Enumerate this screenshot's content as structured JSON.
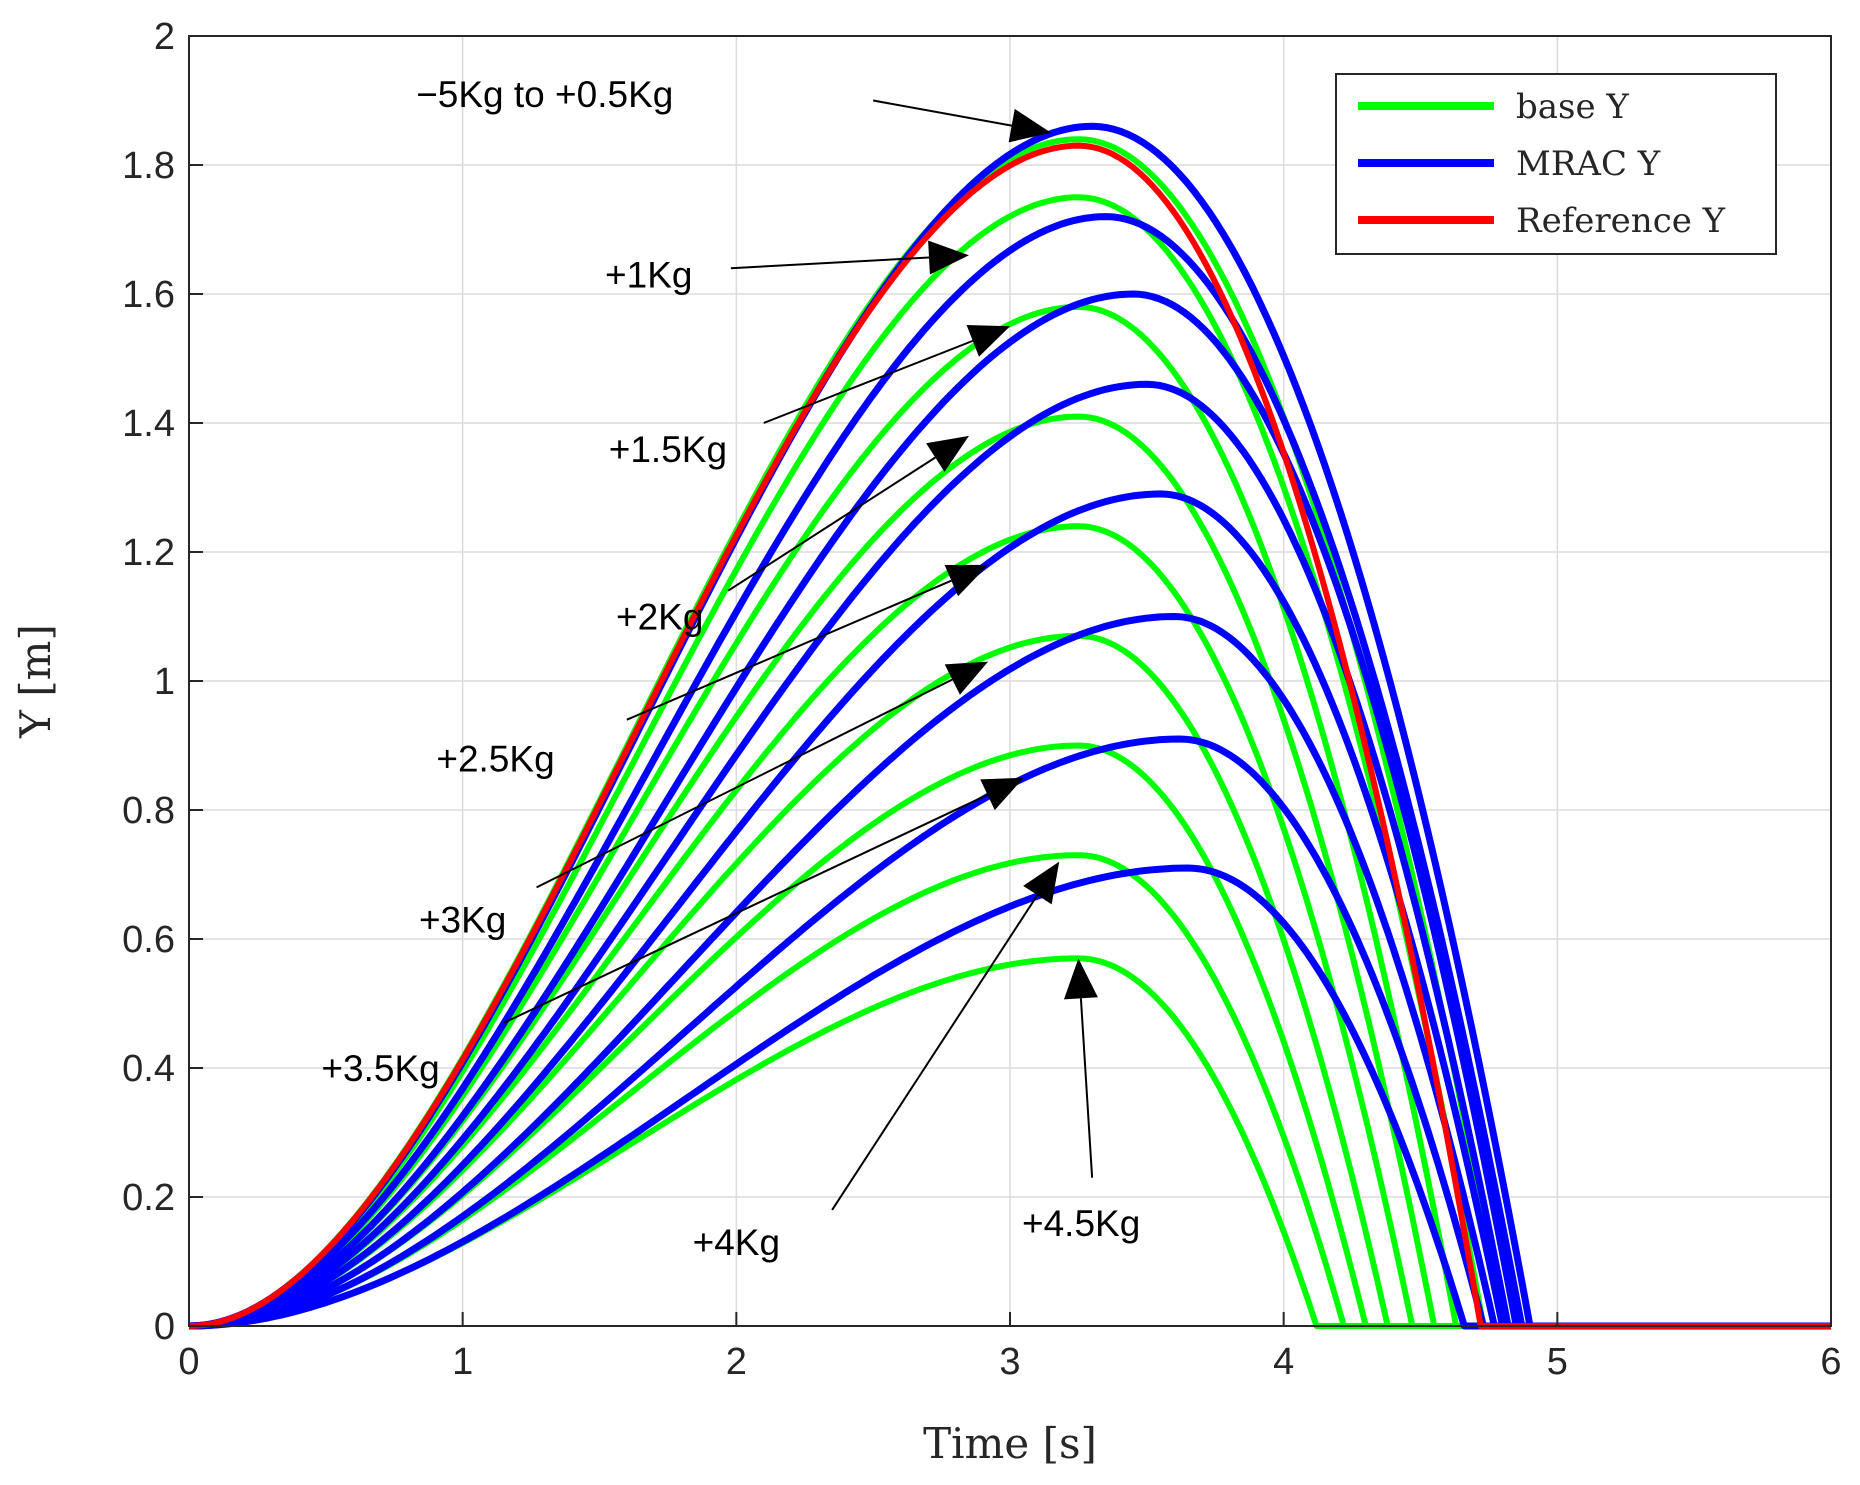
{
  "chart_data": {
    "type": "line",
    "title": "",
    "xlabel": "Time [s]",
    "ylabel": "Y [m]",
    "xlim": [
      0,
      6
    ],
    "ylim": [
      0,
      2
    ],
    "xticks": [
      "0",
      "1",
      "2",
      "3",
      "4",
      "5",
      "6"
    ],
    "yticks": [
      "0",
      "0.2",
      "0.4",
      "0.6",
      "0.8",
      "1",
      "1.2",
      "1.4",
      "1.6",
      "1.8",
      "2"
    ],
    "grid": true,
    "legend": {
      "position": "top-right",
      "entries": [
        {
          "label": "base Y",
          "color": "#00ff00"
        },
        {
          "label": "MRAC Y",
          "color": "#0000ff"
        },
        {
          "label": "Reference Y",
          "color": "#ff0000"
        }
      ]
    },
    "series": [
      {
        "name": "MRAC Y",
        "label": "-5Kg to +0.5Kg",
        "color": "#0000ff",
        "start": 0,
        "peak_t": 3.3,
        "peak_y": 1.86,
        "end_t": 4.9
      },
      {
        "name": "MRAC Y",
        "label": "+1Kg",
        "color": "#0000ff",
        "start": 0,
        "peak_t": 3.35,
        "peak_y": 1.72,
        "end_t": 4.87
      },
      {
        "name": "MRAC Y",
        "label": "+1.5Kg",
        "color": "#0000ff",
        "start": 0,
        "peak_t": 3.45,
        "peak_y": 1.6,
        "end_t": 4.85
      },
      {
        "name": "MRAC Y",
        "label": "+2Kg",
        "color": "#0000ff",
        "start": 0,
        "peak_t": 3.5,
        "peak_y": 1.46,
        "end_t": 4.82
      },
      {
        "name": "MRAC Y",
        "label": "+2.5Kg",
        "color": "#0000ff",
        "start": 0,
        "peak_t": 3.55,
        "peak_y": 1.29,
        "end_t": 4.8
      },
      {
        "name": "MRAC Y",
        "label": "+3Kg",
        "color": "#0000ff",
        "start": 0,
        "peak_t": 3.6,
        "peak_y": 1.1,
        "end_t": 4.77
      },
      {
        "name": "MRAC Y",
        "label": "+3.5Kg",
        "color": "#0000ff",
        "start": 0,
        "peak_t": 3.62,
        "peak_y": 0.91,
        "end_t": 4.73
      },
      {
        "name": "MRAC Y",
        "label": "+4Kg",
        "color": "#0000ff",
        "start": 0,
        "peak_t": 3.65,
        "peak_y": 0.71,
        "end_t": 4.66
      },
      {
        "name": "base Y",
        "label": "-5Kg to +0.5Kg",
        "color": "#00ff00",
        "start": 0,
        "peak_t": 3.25,
        "peak_y": 1.84,
        "end_t": 4.8
      },
      {
        "name": "base Y",
        "label": "+1Kg",
        "color": "#00ff00",
        "start": 0,
        "peak_t": 3.25,
        "peak_y": 1.75,
        "end_t": 4.73
      },
      {
        "name": "base Y",
        "label": "+1.5Kg",
        "color": "#00ff00",
        "start": 0,
        "peak_t": 3.25,
        "peak_y": 1.58,
        "end_t": 4.63
      },
      {
        "name": "base Y",
        "label": "+2Kg",
        "color": "#00ff00",
        "start": 0,
        "peak_t": 3.25,
        "peak_y": 1.41,
        "end_t": 4.55
      },
      {
        "name": "base Y",
        "label": "+2.5Kg",
        "color": "#00ff00",
        "start": 0,
        "peak_t": 3.25,
        "peak_y": 1.24,
        "end_t": 4.47
      },
      {
        "name": "base Y",
        "label": "+3Kg",
        "color": "#00ff00",
        "start": 0,
        "peak_t": 3.25,
        "peak_y": 1.07,
        "end_t": 4.38
      },
      {
        "name": "base Y",
        "label": "+3.5Kg",
        "color": "#00ff00",
        "start": 0,
        "peak_t": 3.25,
        "peak_y": 0.9,
        "end_t": 4.3
      },
      {
        "name": "base Y",
        "label": "+4Kg",
        "color": "#00ff00",
        "start": 0,
        "peak_t": 3.25,
        "peak_y": 0.73,
        "end_t": 4.22
      },
      {
        "name": "base Y",
        "label": "+4.5Kg",
        "color": "#00ff00",
        "start": 0,
        "peak_t": 3.25,
        "peak_y": 0.57,
        "end_t": 4.12
      },
      {
        "name": "Reference Y",
        "label": "Reference",
        "color": "#ff0000",
        "start": 0,
        "peak_t": 3.25,
        "peak_y": 1.83,
        "end_t": 4.72
      }
    ],
    "annotations": [
      {
        "text": "−5Kg to +0.5Kg",
        "text_t": 1.3,
        "text_y": 1.91,
        "tail_t": 2.5,
        "tail_y": 1.9,
        "head_t": 3.15,
        "head_y": 1.85
      },
      {
        "text": "+1Kg",
        "text_t": 1.68,
        "text_y": 1.63,
        "tail_t": 1.98,
        "tail_y": 1.64,
        "head_t": 2.85,
        "head_y": 1.66
      },
      {
        "text": "+1.5Kg",
        "text_t": 1.75,
        "text_y": 1.36,
        "tail_t": 2.1,
        "tail_y": 1.4,
        "head_t": 3.0,
        "head_y": 1.55
      },
      {
        "text": "+2Kg",
        "text_t": 1.72,
        "text_y": 1.1,
        "tail_t": 1.97,
        "tail_y": 1.14,
        "head_t": 2.85,
        "head_y": 1.38
      },
      {
        "text": "+2.5Kg",
        "text_t": 1.12,
        "text_y": 0.88,
        "tail_t": 1.6,
        "tail_y": 0.94,
        "head_t": 2.92,
        "head_y": 1.18
      },
      {
        "text": "+3Kg",
        "text_t": 1.0,
        "text_y": 0.63,
        "tail_t": 1.27,
        "tail_y": 0.68,
        "head_t": 2.92,
        "head_y": 1.03
      },
      {
        "text": "+3.5Kg",
        "text_t": 0.7,
        "text_y": 0.4,
        "tail_t": 1.15,
        "tail_y": 0.47,
        "head_t": 3.05,
        "head_y": 0.85
      },
      {
        "text": "+4Kg",
        "text_t": 2.0,
        "text_y": 0.13,
        "tail_t": 2.35,
        "tail_y": 0.18,
        "head_t": 3.18,
        "head_y": 0.72
      },
      {
        "text": "+4.5Kg",
        "text_t": 3.26,
        "text_y": 0.16,
        "tail_t": 3.3,
        "tail_y": 0.23,
        "head_t": 3.25,
        "head_y": 0.57
      }
    ]
  }
}
